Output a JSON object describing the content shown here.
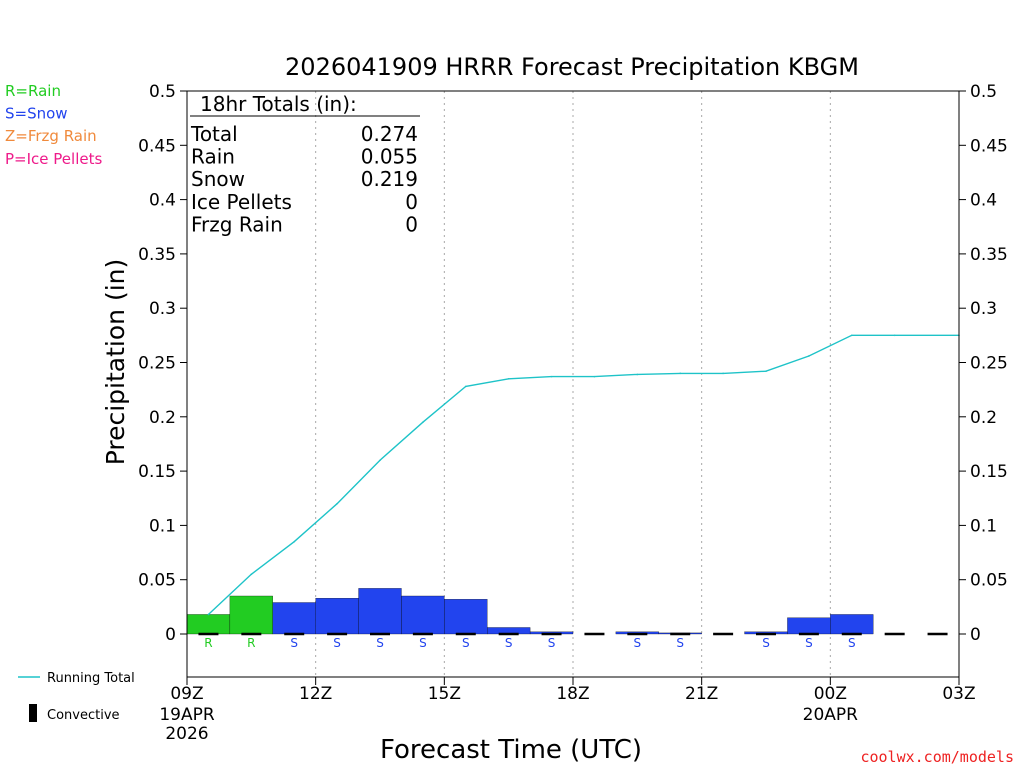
{
  "chart_data": {
    "type": "bar",
    "title": "2026041909 HRRR Forecast Precipitation KBGM",
    "xlabel": "Forecast Time (UTC)",
    "ylabel": "Precipitation (in)",
    "ylim": [
      0,
      0.5
    ],
    "xlim_hours": [
      0,
      18
    ],
    "y_ticks": [
      "0",
      "0.05",
      "0.1",
      "0.15",
      "0.2",
      "0.25",
      "0.3",
      "0.35",
      "0.4",
      "0.45",
      "0.5"
    ],
    "x_ticks": [
      {
        "hour": 0,
        "label": "09Z",
        "date": "19APR",
        "year": "2026"
      },
      {
        "hour": 3,
        "label": "12Z"
      },
      {
        "hour": 6,
        "label": "15Z"
      },
      {
        "hour": 9,
        "label": "18Z"
      },
      {
        "hour": 12,
        "label": "21Z"
      },
      {
        "hour": 15,
        "label": "00Z",
        "date": "20APR"
      },
      {
        "hour": 18,
        "label": "03Z"
      }
    ],
    "hourly_precip": [
      {
        "hour": 1,
        "value": 0.018,
        "type": "R"
      },
      {
        "hour": 2,
        "value": 0.035,
        "type": "R"
      },
      {
        "hour": 3,
        "value": 0.029,
        "type": "S"
      },
      {
        "hour": 4,
        "value": 0.033,
        "type": "S"
      },
      {
        "hour": 5,
        "value": 0.042,
        "type": "S"
      },
      {
        "hour": 6,
        "value": 0.035,
        "type": "S"
      },
      {
        "hour": 7,
        "value": 0.032,
        "type": "S"
      },
      {
        "hour": 8,
        "value": 0.006,
        "type": "S"
      },
      {
        "hour": 9,
        "value": 0.002,
        "type": "S"
      },
      {
        "hour": 10,
        "value": 0.0,
        "type": ""
      },
      {
        "hour": 11,
        "value": 0.002,
        "type": "S"
      },
      {
        "hour": 12,
        "value": 0.001,
        "type": "S"
      },
      {
        "hour": 13,
        "value": 0.0,
        "type": ""
      },
      {
        "hour": 14,
        "value": 0.002,
        "type": "S"
      },
      {
        "hour": 15,
        "value": 0.015,
        "type": "S"
      },
      {
        "hour": 16,
        "value": 0.018,
        "type": "S"
      },
      {
        "hour": 17,
        "value": 0.0,
        "type": ""
      },
      {
        "hour": 18,
        "value": 0.0,
        "type": ""
      }
    ],
    "running_total": {
      "name": "Running Total",
      "hours": [
        1,
        2,
        3,
        4,
        5,
        6,
        7,
        8,
        9,
        10,
        11,
        12,
        13,
        14,
        15,
        16,
        17,
        18
      ],
      "values": [
        0.018,
        0.055,
        0.085,
        0.12,
        0.16,
        0.195,
        0.228,
        0.235,
        0.237,
        0.237,
        0.239,
        0.24,
        0.24,
        0.242,
        0.256,
        0.275,
        0.275,
        0.275
      ]
    },
    "totals": {
      "header": "18hr Totals (in):",
      "rows": [
        {
          "label": "Total",
          "value": "0.274"
        },
        {
          "label": "Rain",
          "value": "0.055"
        },
        {
          "label": "Snow",
          "value": "0.219"
        },
        {
          "label": "Ice Pellets",
          "value": "0"
        },
        {
          "label": "Frzg Rain",
          "value": "0"
        }
      ]
    },
    "type_legend": [
      {
        "code": "R",
        "text": "R=Rain",
        "color": "#22cc22"
      },
      {
        "code": "S",
        "text": "S=Snow",
        "color": "#2244ee"
      },
      {
        "code": "Z",
        "text": "Z=Frzg Rain",
        "color": "#f08a3c"
      },
      {
        "code": "P",
        "text": "P=Ice Pellets",
        "color": "#ee1a8a"
      }
    ],
    "series_legend": [
      {
        "text": "Running Total",
        "color": "#1ec3c8"
      },
      {
        "text": "Convective",
        "color": "#000000"
      }
    ],
    "credit": "coolwx.com/models"
  }
}
